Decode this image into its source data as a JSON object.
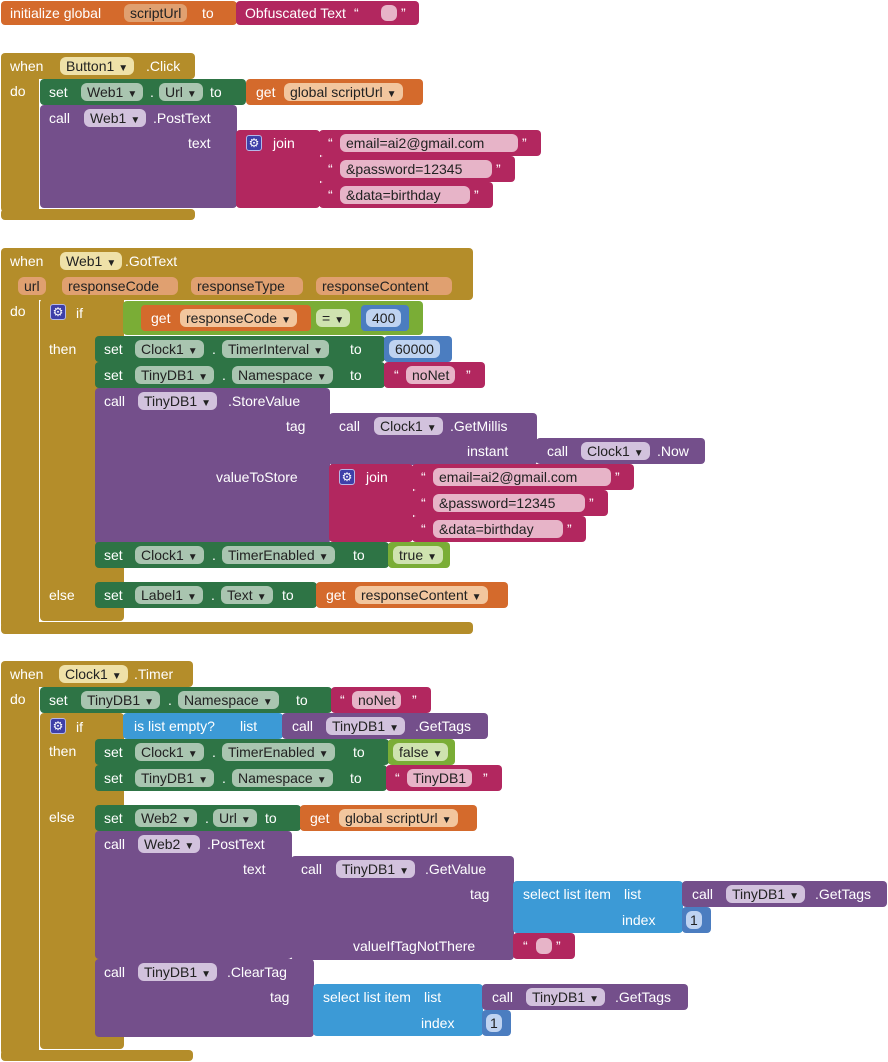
{
  "global": {
    "initialize": "initialize global",
    "var_name": "scriptUrl",
    "to": "to",
    "obfuscated": "Obfuscated Text",
    "quote_open": "“",
    "quote_close": "”"
  },
  "b1": {
    "when": "when",
    "component": "Button1",
    "event": ".Click",
    "do": "do",
    "set": "set",
    "web1": "Web1",
    "dot": ".",
    "url_prop": "Url",
    "to": "to",
    "get": "get",
    "global_var": "global scriptUrl",
    "call": "call",
    "method": ".PostText",
    "text_arg": "text",
    "join": "join",
    "s1": "email=ai2@gmail.com",
    "s2": "&password=12345",
    "s3": "&data=birthday"
  },
  "b2": {
    "when": "when",
    "component": "Web1",
    "event": ".GotText",
    "params": [
      "url",
      "responseCode",
      "responseType",
      "responseContent"
    ],
    "do": "do",
    "if": "if",
    "get": "get",
    "responseCode": "responseCode",
    "eq": "=",
    "num400": "400",
    "then": "then",
    "set": "set",
    "clock1": "Clock1",
    "timerInterval": "TimerInterval",
    "to": "to",
    "num60000": "60000",
    "tinydb1": "TinyDB1",
    "namespace": "Namespace",
    "noNet": "noNet",
    "call": "call",
    "storeValue": ".StoreValue",
    "tag": "tag",
    "getMillis": ".GetMillis",
    "instant": "instant",
    "now": ".Now",
    "valueToStore": "valueToStore",
    "join": "join",
    "s1": "email=ai2@gmail.com",
    "s2": "&password=12345",
    "s3": "&data=birthday",
    "timerEnabled": "TimerEnabled",
    "true": "true",
    "else": "else",
    "label1": "Label1",
    "text_prop": "Text",
    "responseContent": "responseContent",
    "dot": "."
  },
  "b3": {
    "when": "when",
    "component": "Clock1",
    "event": ".Timer",
    "do": "do",
    "set": "set",
    "tinydb1": "TinyDB1",
    "namespace": "Namespace",
    "to": "to",
    "noNet": "noNet",
    "if": "if",
    "isListEmpty": "is list empty?",
    "list": "list",
    "call": "call",
    "getTags": ".GetTags",
    "then": "then",
    "clock1": "Clock1",
    "timerEnabled": "TimerEnabled",
    "false": "false",
    "tinydbStr": "TinyDB1",
    "else": "else",
    "web2": "Web2",
    "url_prop": "Url",
    "get": "get",
    "global_var": "global scriptUrl",
    "postText": ".PostText",
    "text_arg": "text",
    "getValue": ".GetValue",
    "tag": "tag",
    "selectListItem": "select list item",
    "index": "index",
    "one": "1",
    "valueIfTagNotThere": "valueIfTagNotThere",
    "clearTag": ".ClearTag",
    "dot": "."
  }
}
